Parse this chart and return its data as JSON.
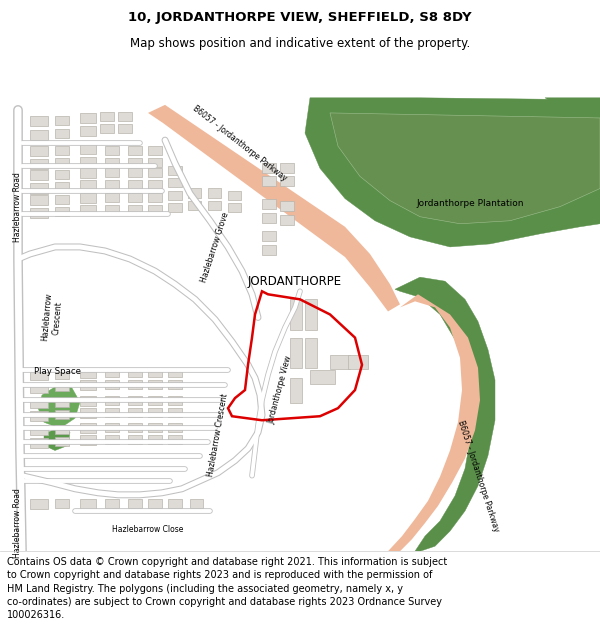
{
  "title_line1": "10, JORDANTHORPE VIEW, SHEFFIELD, S8 8DY",
  "title_line2": "Map shows position and indicative extent of the property.",
  "footer_text": "Contains OS data © Crown copyright and database right 2021. This information is subject to Crown copyright and database rights 2023 and is reproduced with the permission of HM Land Registry. The polygons (including the associated geometry, namely x, y co-ordinates) are subject to Crown copyright and database rights 2023 Ordnance Survey 100026316.",
  "fig_width": 6.0,
  "fig_height": 6.25,
  "title_fontsize": 9.5,
  "subtitle_fontsize": 8.5,
  "footer_fontsize": 7.0,
  "map_bg": "#f8f8f8",
  "green_dark": "#5a8f4a",
  "green_mid": "#6b9e5a",
  "road_pink": "#f0b89a",
  "road_white": "#ffffff",
  "road_outline": "#c8c8c8",
  "building_fill": "#dedad5",
  "building_edge": "#b8b4ae",
  "red_line": "#dd0000"
}
